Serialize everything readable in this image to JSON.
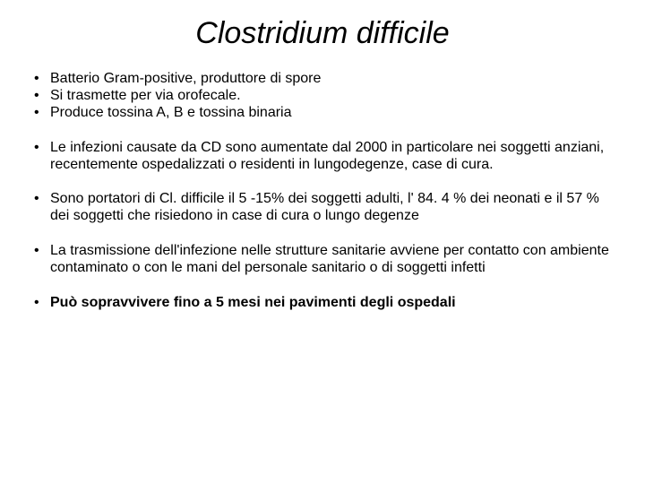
{
  "title": "Clostridium difficile",
  "title_fontsize": 34,
  "title_font_style": "italic",
  "body_fontsize": 16,
  "text_color": "#000000",
  "background_color": "#ffffff",
  "bullets": [
    {
      "text": "Batterio Gram-positive,  produttore di spore",
      "bold": false
    },
    {
      "text": "Si trasmette per via orofecale.",
      "bold": false
    },
    {
      "text": "Produce tossina A, B e tossina binaria",
      "bold": false
    },
    {
      "text": "Le infezioni causate da CD  sono aumentate dal 2000 in particolare nei soggetti anziani, recentemente ospedalizzati o residenti in lungodegenze, case di cura.",
      "bold": false
    },
    {
      "text": "Sono portatori di Cl. difficile il  5 -15% dei soggetti adulti,  l' 84. 4 %  dei neonati e il 57 % dei soggetti che risiedono  in  case di cura o lungo degenze",
      "bold": false
    },
    {
      "text": "La trasmissione dell'infezione nelle strutture sanitarie avviene per contatto con ambiente contaminato  o con le mani del personale sanitario o di soggetti infetti",
      "bold": false
    },
    {
      "text": "Può  sopravvivere fino a 5 mesi nei pavimenti degli ospedali",
      "bold": true
    }
  ]
}
